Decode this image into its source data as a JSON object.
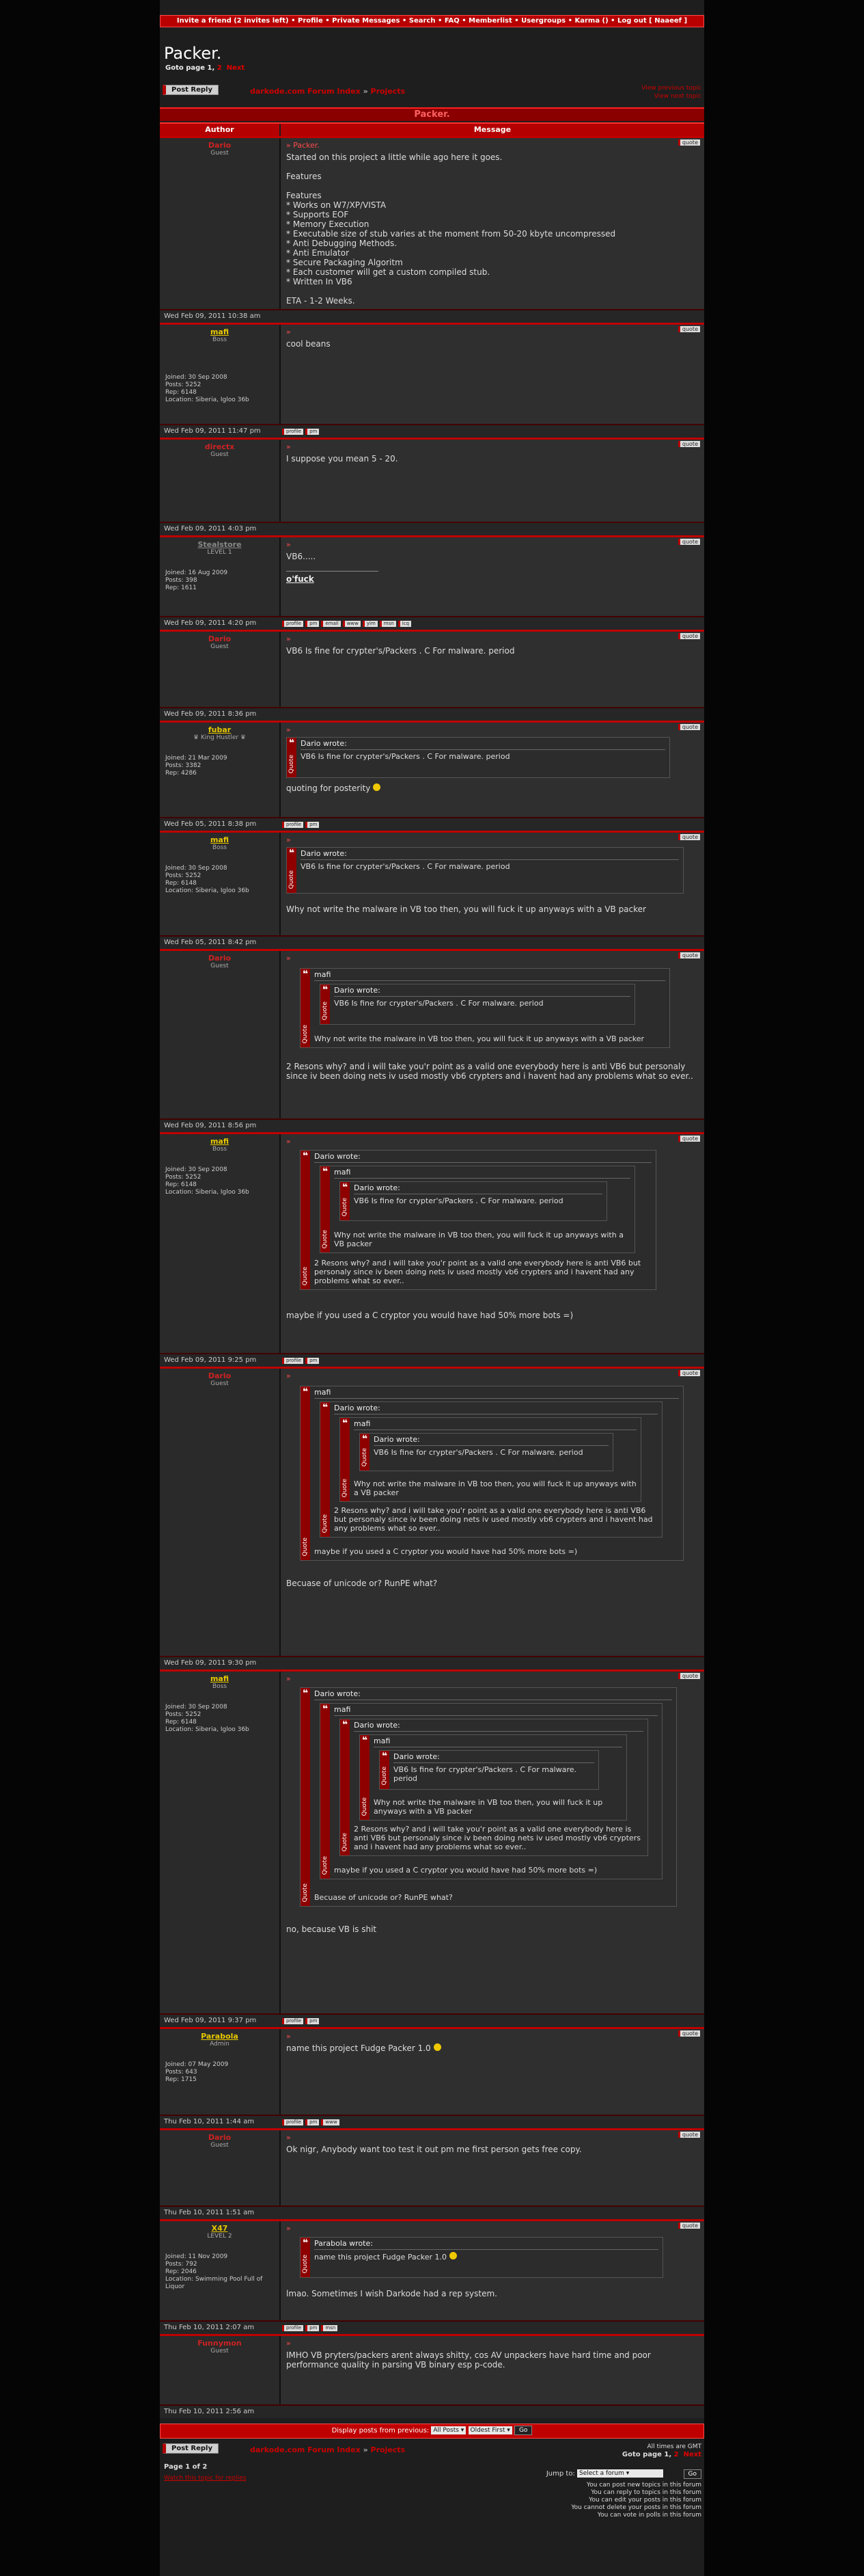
{
  "topnav": {
    "invite": "Invite a friend (2 invites left)",
    "profile": "Profile",
    "pms": "Private Messages",
    "search": "Search",
    "faq": "FAQ",
    "memberlist": "Memberlist",
    "usergroups": "Usergroups",
    "karma": "Karma ()",
    "logout": "Log out [ Naaeef ]",
    "sep": " • "
  },
  "topic": {
    "title": "Packer.",
    "goto_label": "Goto page",
    "page1": "1",
    "page2": "2",
    "next": "Next",
    "bar_title": "Packer."
  },
  "nav": {
    "post_reply": "Post Reply",
    "forum_index": "darkode.com Forum Index",
    "sep": "»",
    "forum": "Projects",
    "view_prev": "View previous topic",
    "view_next": "View next topic"
  },
  "table": {
    "author_header": "Author",
    "message_header": "Message"
  },
  "buttons": {
    "quote": "quote",
    "profile": "profile",
    "pm": "pm",
    "email": "email",
    "www": "www",
    "yim": "yim",
    "msn": "msn",
    "icq": "icq",
    "quote_label": "Quote"
  },
  "posts": [
    {
      "author": "Dario",
      "rank": "Guest",
      "date": "Wed Feb 09, 2011 10:38 am",
      "subject": "Packer.",
      "lines": [
        "Started on this project a little while ago here it goes.",
        "",
        "Features",
        "",
        "Features",
        "* Works on W7/XP/VISTA",
        "* Supports EOF",
        "* Memory Execution",
        "* Executable size of stub varies at the moment from 50-20 kbyte uncompressed",
        "* Anti Debugging Methods.",
        "* Anti Emulator",
        "* Secure Packaging Algoritm",
        "* Each customer will get a custom compiled stub.",
        "* Written In VB6",
        "",
        "ETA - 1-2 Weeks."
      ]
    },
    {
      "author": "mafi",
      "rank": "Boss",
      "joined": "Joined: 30 Sep 2008",
      "posts": "Posts: 5252",
      "rep": "Rep: 6148",
      "location": "Location: Siberia, Igloo 36b",
      "date": "Wed Feb 09, 2011 11:47 pm",
      "text": "cool beans"
    },
    {
      "author": "directx",
      "rank": "Guest",
      "date": "Wed Feb 09, 2011 4:03 pm",
      "text": "I suppose you mean 5 - 20."
    },
    {
      "author": "Stealstore",
      "rank": "LEVEL 1",
      "joined": "Joined: 16 Aug 2009",
      "posts": "Posts: 398",
      "rep": "Rep: 1611",
      "date": "Wed Feb 09, 2011 4:20 pm",
      "text": "VB6.....",
      "sig": "o'fuck"
    },
    {
      "author": "Dario",
      "rank": "Guest",
      "date": "Wed Feb 09, 2011 8:36 pm",
      "text": "VB6 Is fine for crypter's/Packers . C For malware. period"
    },
    {
      "author": "fubar",
      "rank": "♛ King Hustler ♛",
      "joined": "Joined: 21 Mar 2009",
      "posts": "Posts: 3382",
      "rep": "Rep: 4286",
      "date": "Wed Feb 05, 2011 8:38 pm",
      "quote_author": "Dario wrote:",
      "quote_text": "VB6 Is fine for crypter's/Packers . C For malware. period",
      "text": "quoting for posterity"
    },
    {
      "author": "mafi",
      "rank": "Boss",
      "joined": "Joined: 30 Sep 2008",
      "posts": "Posts: 5252",
      "rep": "Rep: 6148",
      "location": "Location: Siberia, Igloo 36b",
      "date": "Wed Feb 05, 2011 8:42 pm",
      "quote_author": "Dario wrote:",
      "quote_text": "VB6 Is fine for crypter's/Packers . C For malware. period",
      "text": "Why not write the malware in VB too then, you will fuck it up anyways with a VB packer"
    },
    {
      "author": "Dario",
      "rank": "Guest",
      "date": "Wed Feb 09, 2011 8:56 pm",
      "text": "2 Resons why? and i will take you'r point as a valid one everybody here is anti VB6 but personaly since iv been doing nets iv used mostly vb6 crypters and i havent had any problems what so ever.."
    },
    {
      "author": "mafi",
      "rank": "Boss",
      "joined": "Joined: 30 Sep 2008",
      "posts": "Posts: 5252",
      "rep": "Rep: 6148",
      "location": "Location: Siberia, Igloo 36b",
      "date": "Wed Feb 09, 2011 9:25 pm",
      "text": "maybe if you used a C cryptor you would have had 50% more bots =)"
    },
    {
      "author": "Dario",
      "rank": "Guest",
      "date": "Wed Feb 09, 2011 9:30 pm",
      "text": "Becuase of unicode or? RunPE what?"
    },
    {
      "author": "mafi",
      "rank": "Boss",
      "joined": "Joined: 30 Sep 2008",
      "posts": "Posts: 5252",
      "rep": "Rep: 6148",
      "location": "Location: Siberia, Igloo 36b",
      "date": "Wed Feb 09, 2011 9:37 pm",
      "text": "no, because VB is shit"
    },
    {
      "author": "Parabola",
      "rank": "Admin",
      "joined": "Joined: 07 May 2009",
      "posts": "Posts: 643",
      "rep": "Rep: 1715",
      "date": "Thu Feb 10, 2011 1:44 am",
      "text": "name this project Fudge Packer 1.0"
    },
    {
      "author": "Dario",
      "rank": "Guest",
      "date": "Thu Feb 10, 2011 1:51 am",
      "text": "Ok nigr, Anybody want too test it out pm me first person gets free copy."
    },
    {
      "author": "X47",
      "rank": "LEVEL 2",
      "joined": "Joined: 11 Nov 2009",
      "posts": "Posts: 792",
      "rep": "Rep: 2046",
      "location": "Location: Swimming Pool Full of Liquor",
      "date": "Thu Feb 10, 2011 2:07 am",
      "quote_author": "Parabola wrote:",
      "quote_text": "name this project Fudge Packer 1.0",
      "text": "lmao. Sometimes I wish Darkode had a rep system."
    },
    {
      "author": "Funnymon",
      "rank": "Guest",
      "date": "Thu Feb 10, 2011 2:56 am",
      "text": "IMHO VB pryters/packers arent always shitty, cos AV unpackers have hard time and poor performance quality in parsing VB binary esp p-code."
    }
  ],
  "footer": {
    "display_label": "Display posts from previous:",
    "all_posts": "All Posts",
    "oldest_first": "Oldest First",
    "go": "Go",
    "page_of": "Page 1 of 2",
    "watch": "Watch this topic for replies",
    "times": "All times are GMT",
    "jump_label": "Jump to:",
    "jump_select": "Select a forum",
    "rights": [
      "You can post new topics in this forum",
      "You can reply to topics in this forum",
      "You can edit your posts in this forum",
      "You cannot delete your posts in this forum",
      "You can vote in polls in this forum"
    ]
  }
}
